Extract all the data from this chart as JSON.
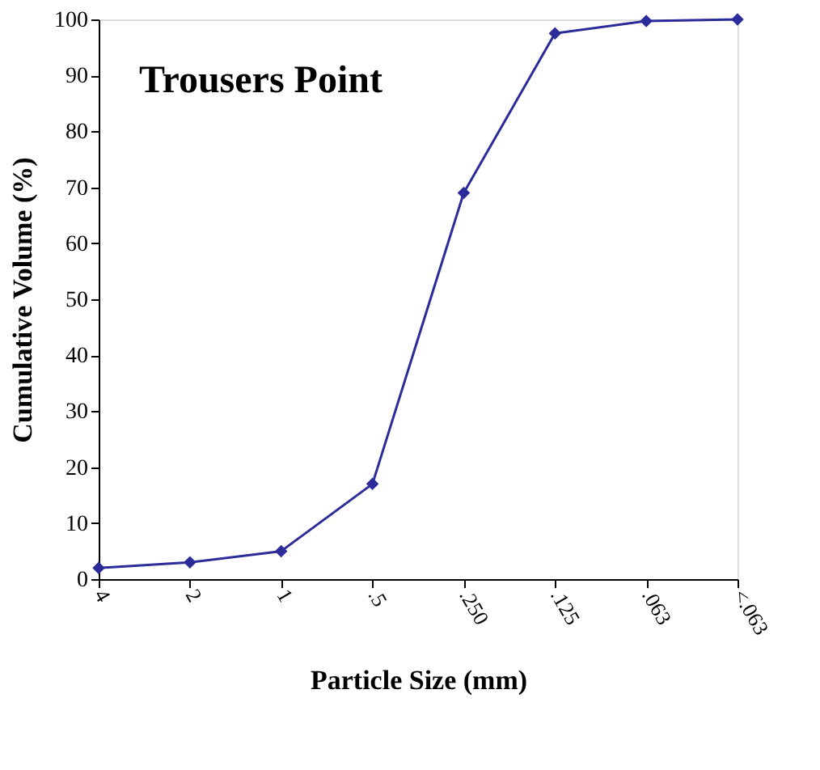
{
  "chart_data": {
    "type": "line",
    "title": "Trousers Point",
    "xlabel": "Particle Size (mm)",
    "ylabel": "Cumulative  Volume  (%)",
    "categories": [
      "4",
      "2",
      "1",
      ".5",
      ".250",
      ".125",
      ".063",
      "<.063"
    ],
    "series": [
      {
        "color": "#2b2b9a",
        "values": [
          2,
          3,
          5,
          17,
          69,
          97.5,
          99.7,
          100
        ]
      }
    ],
    "ylim": [
      0,
      100
    ],
    "yticks": [
      0,
      10,
      20,
      30,
      40,
      50,
      60,
      70,
      80,
      90,
      100
    ],
    "grid": false,
    "legend": false,
    "marker": "diamond",
    "line_style": "solid"
  }
}
